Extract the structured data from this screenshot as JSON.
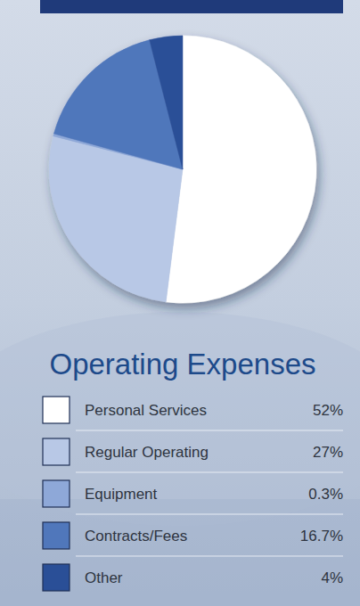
{
  "chart_data": {
    "type": "pie",
    "title": "Operating Expenses",
    "categories": [
      "Personal Services",
      "Regular Operating",
      "Equipment",
      "Contracts/Fees",
      "Other"
    ],
    "values": [
      52,
      27,
      0.3,
      16.7,
      4
    ],
    "value_labels": [
      "52%",
      "27%",
      "0.3%",
      "16.7%",
      "4%"
    ],
    "colors": [
      "#ffffff",
      "#b8c8e6",
      "#8ea8d8",
      "#5077bb",
      "#2a4f97"
    ],
    "legend": "bottom"
  }
}
